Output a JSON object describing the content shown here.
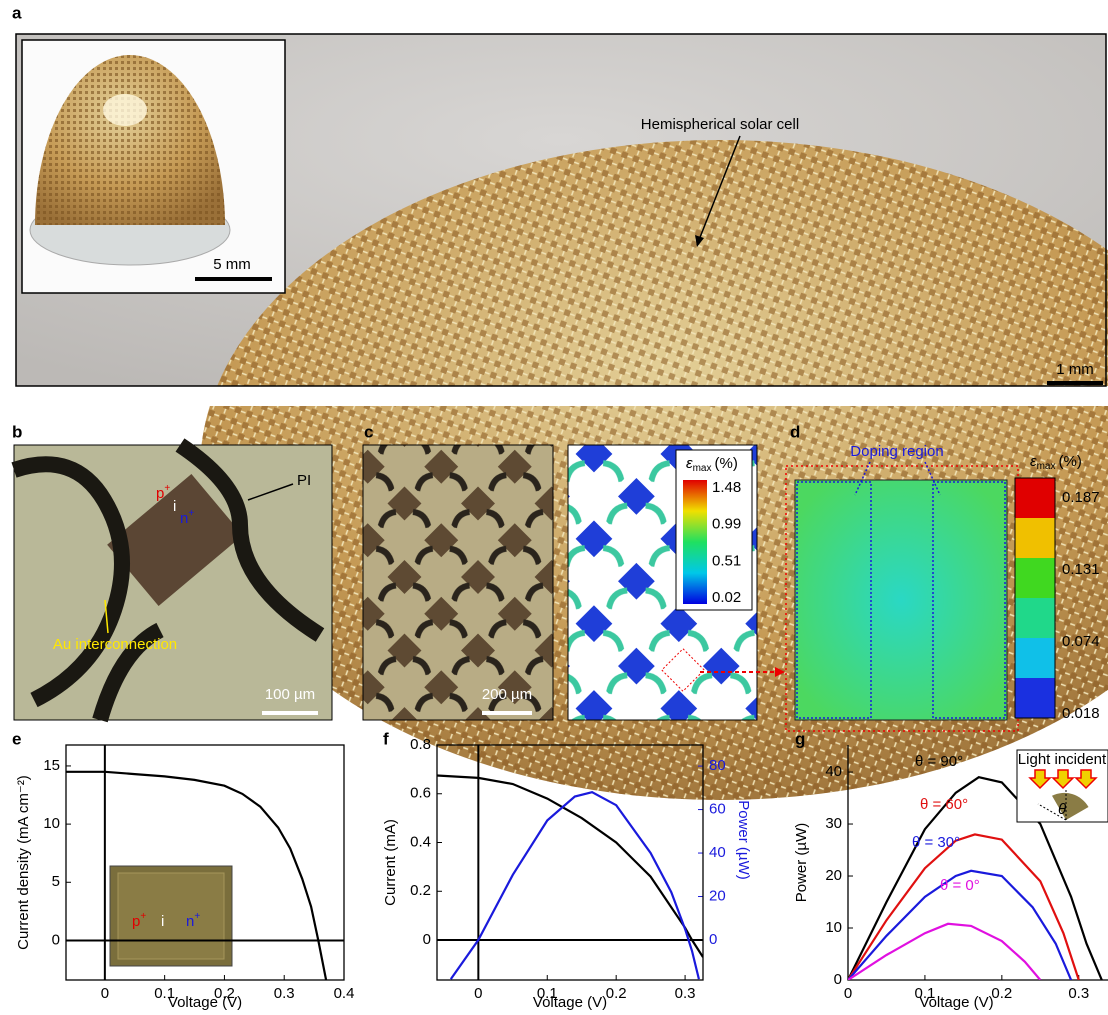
{
  "panels": {
    "a": {
      "label": "a",
      "annotation": "Hemispherical solar cell",
      "inset_scale": "5 mm",
      "scale": "1 mm"
    },
    "b": {
      "label": "b",
      "p": "p",
      "p_sup": "+",
      "i": "i",
      "n": "n",
      "n_sup": "+",
      "pi": "PI",
      "interconnect": "Au interconnection",
      "scale": "100 µm"
    },
    "c": {
      "label": "c",
      "scale": "200 µm",
      "colorbar": {
        "symbol": "ε",
        "sub": "max",
        "unit": "(%)",
        "ticks": [
          "1.48",
          "0.99",
          "0.51",
          "0.02"
        ]
      }
    },
    "d": {
      "label": "d",
      "annotation": "Doping region",
      "colorbar": {
        "symbol": "ε",
        "sub": "max",
        "unit": "(%)",
        "ticks": [
          "0.187",
          "0.131",
          "0.074",
          "0.018"
        ]
      }
    },
    "e": {
      "inset": {
        "p": "p",
        "p_sup": "+",
        "i": "i",
        "n": "n",
        "n_sup": "+"
      }
    },
    "g": {
      "inset": "Light incident",
      "angle": "θ"
    }
  },
  "chart_data": [
    {
      "type": "line",
      "panel": "e",
      "xlabel": "Voltage (V)",
      "ylabel": "Current density (mA cm⁻²)",
      "xlim": [
        -0.065,
        0.4
      ],
      "ylim": [
        -3.4,
        16.8
      ],
      "xticks": [
        0,
        0.1,
        0.2,
        0.3,
        0.4
      ],
      "yticks": [
        0,
        5,
        10,
        15
      ],
      "zero_lines": true,
      "series": [
        {
          "color": "#000000",
          "x": [
            -0.065,
            0,
            0.05,
            0.1,
            0.15,
            0.2,
            0.23,
            0.26,
            0.29,
            0.31,
            0.33,
            0.345,
            0.357,
            0.37
          ],
          "values": [
            14.5,
            14.5,
            14.3,
            14.1,
            13.8,
            13.3,
            12.6,
            11.5,
            9.7,
            7.9,
            5.3,
            2.9,
            0,
            -3.4
          ]
        }
      ]
    },
    {
      "type": "line",
      "panel": "f",
      "xlabel": "Voltage (V)",
      "ylabel": "Current (mA)",
      "y2label": "Power (µW)",
      "xlim": [
        -0.06,
        0.326
      ],
      "ylim": [
        -0.164,
        0.8
      ],
      "y2lim": [
        -18.4,
        89.7
      ],
      "xticks": [
        0,
        0.1,
        0.2,
        0.3
      ],
      "yticks": [
        0,
        0.2,
        0.4,
        0.6,
        0.8
      ],
      "y2ticks": [
        0,
        20,
        40,
        60,
        80
      ],
      "y2color": "#1a1adc",
      "zero_lines": true,
      "series": [
        {
          "color": "#000000",
          "x": [
            -0.06,
            0,
            0.05,
            0.1,
            0.15,
            0.2,
            0.25,
            0.3,
            0.31,
            0.326
          ],
          "values": [
            0.675,
            0.665,
            0.64,
            0.58,
            0.5,
            0.4,
            0.26,
            0.05,
            0,
            -0.07
          ]
        },
        {
          "color": "#1a1adc",
          "axis": "y2",
          "x": [
            -0.04,
            0,
            0.05,
            0.1,
            0.14,
            0.165,
            0.2,
            0.25,
            0.28,
            0.3,
            0.31,
            0.32
          ],
          "values": [
            -18,
            0,
            30,
            55,
            66,
            68,
            62,
            40,
            22,
            5,
            -5,
            -18
          ]
        }
      ]
    },
    {
      "type": "line",
      "panel": "g",
      "xlabel": "Voltage (V)",
      "ylabel": "Power (µW)",
      "xlim": [
        0,
        0.338
      ],
      "ylim": [
        0,
        45.2
      ],
      "xticks": [
        0,
        0.1,
        0.2,
        0.3
      ],
      "yticks": [
        0,
        10,
        20,
        30,
        40
      ],
      "zero_lines": false,
      "series": [
        {
          "name": "θ = 90°",
          "color": "#000000",
          "x": [
            0,
            0.05,
            0.1,
            0.14,
            0.17,
            0.2,
            0.25,
            0.29,
            0.31,
            0.33
          ],
          "values": [
            0,
            15,
            29,
            36,
            39,
            38,
            30,
            16,
            7,
            0
          ]
        },
        {
          "name": "θ = 60°",
          "color": "#e01010",
          "x": [
            0,
            0.05,
            0.1,
            0.14,
            0.165,
            0.2,
            0.25,
            0.28,
            0.3
          ],
          "values": [
            0,
            11.5,
            21.5,
            26.8,
            28,
            27,
            19,
            9,
            0
          ]
        },
        {
          "name": "θ = 30°",
          "color": "#1a1adc",
          "x": [
            0,
            0.05,
            0.1,
            0.14,
            0.16,
            0.2,
            0.24,
            0.27,
            0.29
          ],
          "values": [
            0,
            8.5,
            16,
            20,
            21,
            20,
            14,
            7,
            0
          ]
        },
        {
          "name": "θ = 0°",
          "color": "#e010e0",
          "x": [
            0,
            0.05,
            0.1,
            0.13,
            0.16,
            0.2,
            0.23,
            0.25
          ],
          "values": [
            0,
            4.8,
            9,
            10.8,
            10.4,
            7.5,
            3.5,
            0
          ]
        }
      ]
    }
  ]
}
